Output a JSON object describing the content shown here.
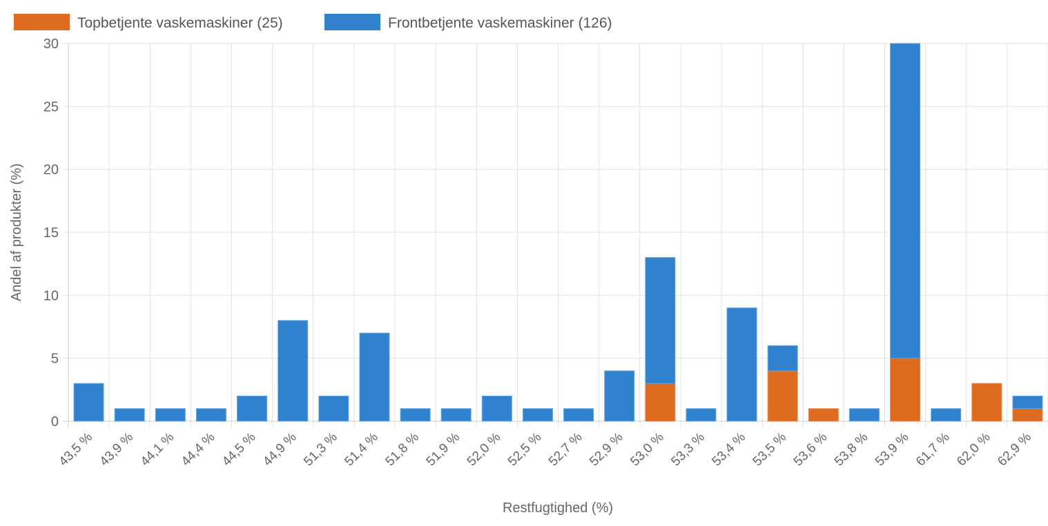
{
  "chart_data": {
    "type": "bar",
    "stacked": true,
    "title": "",
    "xlabel": "Restfugtighed (%)",
    "ylabel": "Andel af produkter (%)",
    "ylim": [
      0,
      30
    ],
    "yticks": [
      0,
      5,
      10,
      15,
      20,
      25,
      30
    ],
    "grid": true,
    "legend_position": "top-left",
    "categories": [
      "43,5 %",
      "43,9 %",
      "44,1 %",
      "44,4 %",
      "44,5 %",
      "44,9 %",
      "51,3 %",
      "51,4 %",
      "51,8 %",
      "51,9 %",
      "52,0 %",
      "52,5 %",
      "52,7 %",
      "52,9 %",
      "53,0 %",
      "53,3 %",
      "53,4 %",
      "53,5 %",
      "53,6 %",
      "53,8 %",
      "53,9 %",
      "61,7 %",
      "62,0 %",
      "62,9 %"
    ],
    "series": [
      {
        "name": "Topbetjente vaskemaskiner (25)",
        "color": "#dd6b20",
        "values": [
          0,
          0,
          0,
          0,
          0,
          0,
          0,
          0,
          0,
          0,
          0,
          0,
          0,
          0,
          3,
          0,
          0,
          4,
          1,
          0,
          5,
          0,
          3,
          1
        ]
      },
      {
        "name": "Frontbetjente vaskemaskiner (126)",
        "color": "#3182ce",
        "values": [
          3,
          1,
          1,
          1,
          2,
          8,
          2,
          7,
          1,
          1,
          2,
          1,
          1,
          4,
          10,
          1,
          9,
          2,
          0,
          1,
          25,
          1,
          0,
          1
        ]
      }
    ]
  }
}
